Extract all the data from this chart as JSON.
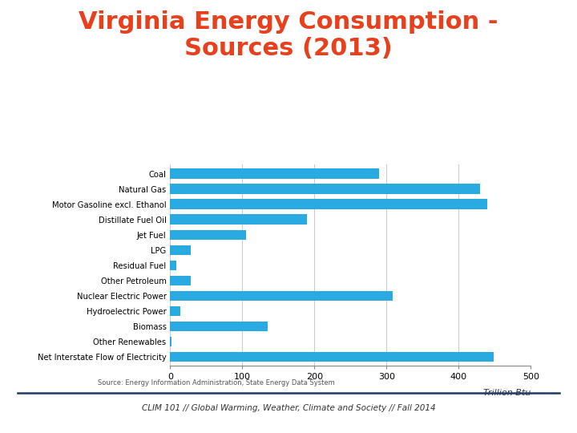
{
  "title": "Virginia Energy Consumption -\nSources (2013)",
  "title_color": "#E8401C",
  "title_fontsize": 22,
  "title_fontweight": "bold",
  "categories": [
    "Net Interstate Flow of Electricity",
    "Other Renewables",
    "Biomass",
    "Hydroelectric Power",
    "Nuclear Electric Power",
    "Other Petroleum",
    "Residual Fuel",
    "LPG",
    "Jet Fuel",
    "Distillate Fuel Oil",
    "Motor Gasoline excl. Ethanol",
    "Natural Gas",
    "Coal"
  ],
  "values": [
    448,
    2,
    135,
    14,
    308,
    28,
    8,
    28,
    105,
    190,
    440,
    430,
    290
  ],
  "bar_color": "#29ABE2",
  "xlabel": "Trillion Btu",
  "xlim": [
    0,
    500
  ],
  "xticks": [
    0,
    100,
    200,
    300,
    400,
    500
  ],
  "grid_color": "#cccccc",
  "bg_color": "#ffffff",
  "source_text": "Source: Energy Information Administration, State Energy Data System",
  "footer_text": "CLIM 101 // Global Warming, Weather, Climate and Society // Fall 2014"
}
